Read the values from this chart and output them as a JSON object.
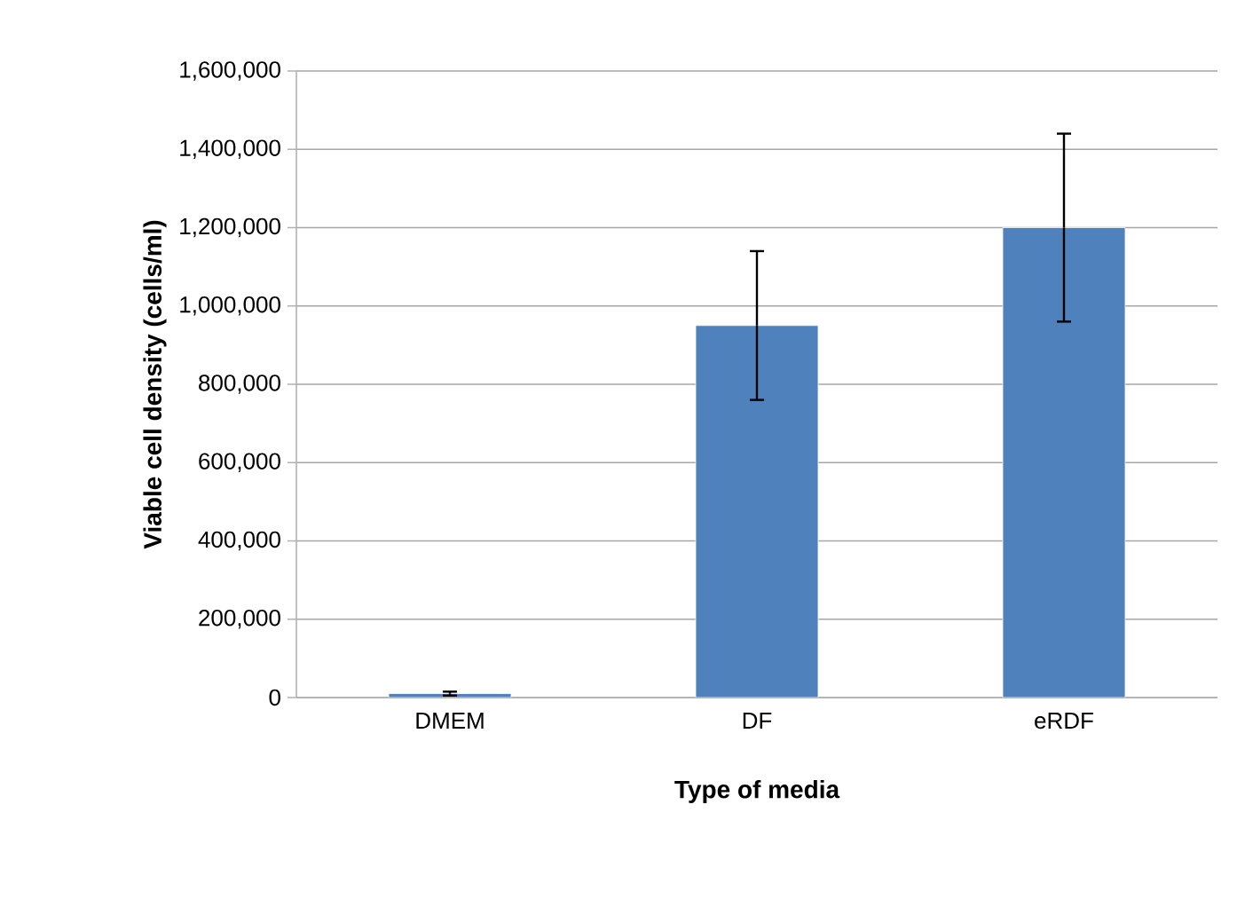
{
  "chart_data": {
    "type": "bar",
    "xlabel": "Type of media",
    "ylabel": "Viable cell density (cells/ml)",
    "categories": [
      "DMEM",
      "DF",
      "eRDF"
    ],
    "values": [
      10000,
      950000,
      1200000
    ],
    "errors": [
      5000,
      190000,
      240000
    ],
    "color": "#4f81bd",
    "ylim": [
      0,
      1600000
    ],
    "yticks": [
      {
        "value": 0,
        "label": "0"
      },
      {
        "value": 200000,
        "label": "200,000"
      },
      {
        "value": 400000,
        "label": "400,000"
      },
      {
        "value": 600000,
        "label": "600,000"
      },
      {
        "value": 800000,
        "label": "800,000"
      },
      {
        "value": 1000000,
        "label": "1,000,000"
      },
      {
        "value": 1200000,
        "label": "1,200,000"
      },
      {
        "value": 1400000,
        "label": "1,400,000"
      },
      {
        "value": 1600000,
        "label": "1,600,000"
      }
    ],
    "grid": "y"
  }
}
